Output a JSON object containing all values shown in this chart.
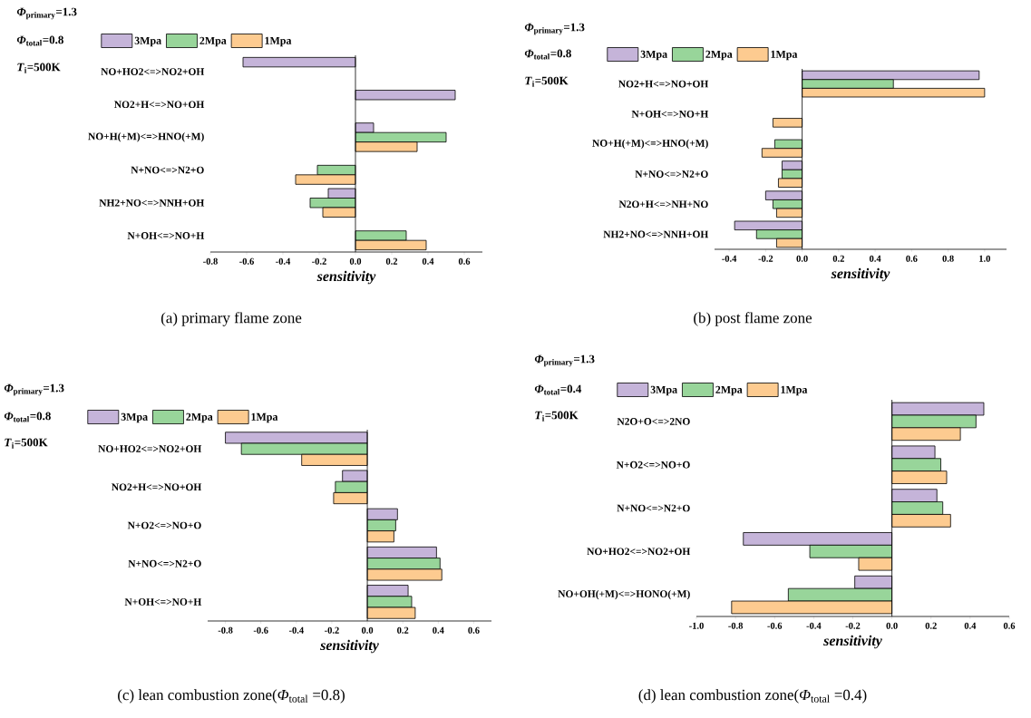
{
  "chart_data": [
    {
      "type": "bar",
      "orientation": "horizontal",
      "title": "(a) primary flame zone",
      "xlabel": "sensitivity",
      "legend": "top",
      "annotations": [
        "*Φ*$_{primary}$=1.3",
        "*Φ*$_{total}$=0.8",
        "*T*$_{i}$=500K"
      ],
      "categories": [
        "NO+HO2<=>NO2+OH",
        "NO2+H<=>NO+OH",
        "NO+H(+M)<=>HNO(+M)",
        "N+NO<=>N2+O",
        "NH2+NO<=>NNH+OH",
        "N+OH<=>NO+H"
      ],
      "series": [
        {
          "name": "3Mpa",
          "color": "#c5b4d9",
          "values": [
            -0.62,
            0.55,
            0.1,
            null,
            -0.15,
            null
          ]
        },
        {
          "name": "2Mpa",
          "color": "#98d59a",
          "values": [
            null,
            null,
            0.5,
            -0.21,
            -0.25,
            0.28
          ]
        },
        {
          "name": "1Mpa",
          "color": "#fdcb90",
          "values": [
            null,
            null,
            0.34,
            -0.33,
            -0.18,
            0.39
          ]
        }
      ],
      "xlim": [
        -0.8,
        0.7
      ],
      "xticks": [
        -0.8,
        -0.6,
        -0.4,
        -0.2,
        {
          "value": 0,
          "label": "0.0"
        },
        0.2,
        0.4,
        0.6
      ]
    },
    {
      "type": "bar",
      "orientation": "horizontal",
      "title": "(b) post flame zone",
      "xlabel": "sensitivity",
      "legend": "top",
      "annotations": [
        "*Φ*$_{primary}$=1.3",
        "*Φ*$_{total}$=0.8",
        "*T*$_{i}$=500K"
      ],
      "categories": [
        "NO2+H<=>NO+OH",
        "N+OH<=>NO+H",
        "NO+H(+M)<=>HNO(+M)",
        "N+NO<=>N2+O",
        "N2O+H<=>NH+NO",
        "NH2+NO<=>NNH+OH"
      ],
      "series": [
        {
          "name": "3Mpa",
          "color": "#c5b4d9",
          "values": [
            0.97,
            null,
            null,
            -0.11,
            -0.2,
            -0.37
          ]
        },
        {
          "name": "2Mpa",
          "color": "#98d59a",
          "values": [
            0.5,
            null,
            -0.15,
            -0.11,
            -0.16,
            -0.25
          ]
        },
        {
          "name": "1Mpa",
          "color": "#fdcb90",
          "values": [
            1.0,
            -0.16,
            -0.22,
            -0.13,
            -0.14,
            -0.14
          ]
        }
      ],
      "xlim": [
        -0.48,
        1.12
      ],
      "xticks": [
        -0.4,
        -0.2,
        {
          "value": 0,
          "label": "0.0"
        },
        0.2,
        0.4,
        0.6,
        0.8,
        {
          "value": 1,
          "label": "1.0"
        }
      ]
    },
    {
      "type": "bar",
      "orientation": "horizontal",
      "title": "(c) lean combustion zone(*Φ*$_{total}$ =0.8)",
      "xlabel": "sensitivity",
      "legend": "top",
      "annotations": [
        "*Φ*$_{primary}$=1.3",
        "*Φ*$_{total}$=0.8",
        "*T*$_{i}$=500K"
      ],
      "categories": [
        "NO+HO2<=>NO2+OH",
        "NO2+H<=>NO+OH",
        "N+O2<=>NO+O",
        "N+NO<=>N2+O",
        "N+OH<=>NO+H"
      ],
      "series": [
        {
          "name": "3Mpa",
          "color": "#c5b4d9",
          "values": [
            -0.8,
            -0.14,
            0.17,
            0.39,
            0.23
          ]
        },
        {
          "name": "2Mpa",
          "color": "#98d59a",
          "values": [
            -0.71,
            -0.18,
            0.16,
            0.41,
            0.25
          ]
        },
        {
          "name": "1Mpa",
          "color": "#fdcb90",
          "values": [
            -0.37,
            -0.19,
            0.15,
            0.42,
            0.27
          ]
        }
      ],
      "xlim": [
        -0.9,
        0.7
      ],
      "xticks": [
        -0.8,
        -0.6,
        -0.4,
        -0.2,
        {
          "value": 0,
          "label": "0.0"
        },
        0.2,
        0.4,
        0.6
      ]
    },
    {
      "type": "bar",
      "orientation": "horizontal",
      "title": "(d) lean combustion zone(*Φ*$_{total}$ =0.4)",
      "xlabel": "sensitivity",
      "legend": "top",
      "annotations": [
        "*Φ*$_{primary}$=1.3",
        "*Φ*$_{total}$=0.4",
        "*T*$_{i}$=500K"
      ],
      "categories": [
        "N2O+O<=>2NO",
        "N+O2<=>NO+O",
        "N+NO<=>N2+O",
        "NO+HO2<=>NO2+OH",
        "NO+OH(+M)<=>HONO(+M)"
      ],
      "series": [
        {
          "name": "3Mpa",
          "color": "#c5b4d9",
          "values": [
            0.47,
            0.22,
            0.23,
            -0.76,
            -0.19
          ]
        },
        {
          "name": "2Mpa",
          "color": "#98d59a",
          "values": [
            0.43,
            0.25,
            0.26,
            -0.42,
            -0.53
          ]
        },
        {
          "name": "1Mpa",
          "color": "#fdcb90",
          "values": [
            0.35,
            0.28,
            0.3,
            -0.17,
            -0.82
          ]
        }
      ],
      "xlim": [
        -1.0,
        0.6
      ],
      "xticks": [
        {
          "value": -1,
          "label": "-1.0"
        },
        -0.8,
        -0.6,
        -0.4,
        -0.2,
        {
          "value": 0,
          "label": "0.0"
        },
        0.2,
        0.4,
        0.6
      ]
    }
  ]
}
